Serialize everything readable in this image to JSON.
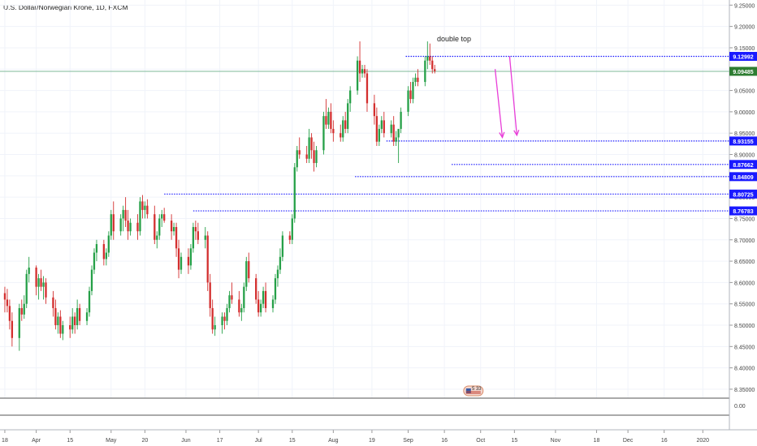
{
  "header": {
    "symbol_title": "U.S. Dollar/Norwegian Krone, 1D, FXCM"
  },
  "chart_data": {
    "type": "candlestick",
    "title": "U.S. Dollar/Norwegian Krone, 1D, FXCM",
    "y_axis": {
      "ticks": [
        8.35,
        8.4,
        8.45,
        8.5,
        8.55,
        8.6,
        8.65,
        8.7,
        8.75,
        8.8,
        8.85,
        8.9,
        8.95,
        9.0,
        9.05,
        9.1,
        9.15,
        9.2,
        9.25
      ],
      "tick_labels": [
        "8.35000",
        "8.40000",
        "8.45000",
        "8.50000",
        "8.55000",
        "8.60000",
        "8.65000",
        "8.70000",
        "8.75000",
        "8.80000",
        "8.85000",
        "8.90000",
        "8.95000",
        "9.00000",
        "9.05000",
        "9.10000",
        "9.15000",
        "9.20000",
        "9.25000"
      ],
      "range": [
        8.329,
        9.262
      ]
    },
    "x_axis": {
      "labels": [
        {
          "day": 0,
          "text": "18"
        },
        {
          "day": 13,
          "text": "Apr"
        },
        {
          "day": 27,
          "text": "15"
        },
        {
          "day": 44,
          "text": "May"
        },
        {
          "day": 58,
          "text": "20"
        },
        {
          "day": 75,
          "text": "Jun"
        },
        {
          "day": 89,
          "text": "17"
        },
        {
          "day": 105,
          "text": "Jul"
        },
        {
          "day": 119,
          "text": "15"
        },
        {
          "day": 136,
          "text": "Aug"
        },
        {
          "day": 152,
          "text": "19"
        },
        {
          "day": 167,
          "text": "Sep"
        },
        {
          "day": 182,
          "text": "16"
        },
        {
          "day": 197,
          "text": "Oct"
        },
        {
          "day": 211,
          "text": "15"
        },
        {
          "day": 228,
          "text": "Nov"
        },
        {
          "day": 245,
          "text": "18"
        },
        {
          "day": 258,
          "text": "Dec"
        },
        {
          "day": 273,
          "text": "16"
        },
        {
          "day": 289,
          "text": "2020"
        }
      ],
      "day_range": [
        -2,
        300
      ]
    },
    "current_price": {
      "value": 9.09485,
      "label": "9.09485",
      "color": "#2e7d32"
    },
    "levels": [
      {
        "value": 9.12992,
        "label": "9.12992",
        "from_day": 166
      },
      {
        "value": 8.93155,
        "label": "8.93155",
        "from_day": 158
      },
      {
        "value": 8.87662,
        "label": "8.87662",
        "from_day": 185
      },
      {
        "value": 8.84809,
        "label": "8.84809",
        "from_day": 145
      },
      {
        "value": 8.80725,
        "label": "8.80725",
        "from_day": 66
      },
      {
        "value": 8.76783,
        "label": "8.76783",
        "from_day": 78
      }
    ],
    "level_color": "#1a1aff",
    "annotations": [
      {
        "text": "double top",
        "day": 186,
        "value": 9.165
      }
    ],
    "arrows": [
      {
        "from_day": 203,
        "from_value": 9.1,
        "to_day": 206,
        "to_value": 8.94
      },
      {
        "from_day": 209,
        "from_value": 9.13,
        "to_day": 212,
        "to_value": 8.945
      }
    ],
    "arrow_color": "#e83ed8",
    "up_color": "#26a048",
    "down_color": "#d32f2f",
    "candles": [
      {
        "d": 0,
        "o": 8.575,
        "h": 8.59,
        "l": 8.53,
        "c": 8.56
      },
      {
        "d": 1,
        "o": 8.56,
        "h": 8.585,
        "l": 8.53,
        "c": 8.545
      },
      {
        "d": 2,
        "o": 8.545,
        "h": 8.56,
        "l": 8.49,
        "c": 8.51
      },
      {
        "d": 3,
        "o": 8.51,
        "h": 8.53,
        "l": 8.45,
        "c": 8.47
      },
      {
        "d": 6,
        "o": 8.47,
        "h": 8.55,
        "l": 8.44,
        "c": 8.54
      },
      {
        "d": 7,
        "o": 8.54,
        "h": 8.56,
        "l": 8.51,
        "c": 8.525
      },
      {
        "d": 8,
        "o": 8.525,
        "h": 8.57,
        "l": 8.515,
        "c": 8.55
      },
      {
        "d": 9,
        "o": 8.55,
        "h": 8.63,
        "l": 8.54,
        "c": 8.62
      },
      {
        "d": 10,
        "o": 8.62,
        "h": 8.66,
        "l": 8.6,
        "c": 8.635
      },
      {
        "d": 13,
        "o": 8.635,
        "h": 8.64,
        "l": 8.57,
        "c": 8.59
      },
      {
        "d": 14,
        "o": 8.59,
        "h": 8.62,
        "l": 8.56,
        "c": 8.61
      },
      {
        "d": 15,
        "o": 8.61,
        "h": 8.63,
        "l": 8.58,
        "c": 8.59
      },
      {
        "d": 16,
        "o": 8.59,
        "h": 8.615,
        "l": 8.56,
        "c": 8.6
      },
      {
        "d": 17,
        "o": 8.6,
        "h": 8.61,
        "l": 8.55,
        "c": 8.565
      },
      {
        "d": 20,
        "o": 8.565,
        "h": 8.58,
        "l": 8.52,
        "c": 8.54
      },
      {
        "d": 21,
        "o": 8.54,
        "h": 8.56,
        "l": 8.49,
        "c": 8.5
      },
      {
        "d": 22,
        "o": 8.5,
        "h": 8.53,
        "l": 8.48,
        "c": 8.52
      },
      {
        "d": 23,
        "o": 8.52,
        "h": 8.535,
        "l": 8.47,
        "c": 8.48
      },
      {
        "d": 24,
        "o": 8.48,
        "h": 8.51,
        "l": 8.465,
        "c": 8.5
      },
      {
        "d": 27,
        "o": 8.5,
        "h": 8.52,
        "l": 8.47,
        "c": 8.49
      },
      {
        "d": 28,
        "o": 8.49,
        "h": 8.54,
        "l": 8.48,
        "c": 8.52
      },
      {
        "d": 29,
        "o": 8.52,
        "h": 8.53,
        "l": 8.48,
        "c": 8.5
      },
      {
        "d": 30,
        "o": 8.5,
        "h": 8.56,
        "l": 8.49,
        "c": 8.54
      },
      {
        "d": 31,
        "o": 8.54,
        "h": 8.55,
        "l": 8.5,
        "c": 8.51
      },
      {
        "d": 34,
        "o": 8.51,
        "h": 8.54,
        "l": 8.5,
        "c": 8.53
      },
      {
        "d": 35,
        "o": 8.53,
        "h": 8.59,
        "l": 8.52,
        "c": 8.58
      },
      {
        "d": 36,
        "o": 8.58,
        "h": 8.64,
        "l": 8.57,
        "c": 8.63
      },
      {
        "d": 37,
        "o": 8.63,
        "h": 8.68,
        "l": 8.62,
        "c": 8.67
      },
      {
        "d": 38,
        "o": 8.67,
        "h": 8.7,
        "l": 8.65,
        "c": 8.69
      },
      {
        "d": 41,
        "o": 8.69,
        "h": 8.7,
        "l": 8.64,
        "c": 8.655
      },
      {
        "d": 42,
        "o": 8.655,
        "h": 8.68,
        "l": 8.64,
        "c": 8.67
      },
      {
        "d": 43,
        "o": 8.67,
        "h": 8.72,
        "l": 8.66,
        "c": 8.71
      },
      {
        "d": 44,
        "o": 8.71,
        "h": 8.77,
        "l": 8.7,
        "c": 8.76
      },
      {
        "d": 45,
        "o": 8.76,
        "h": 8.79,
        "l": 8.7,
        "c": 8.72
      },
      {
        "d": 48,
        "o": 8.72,
        "h": 8.76,
        "l": 8.71,
        "c": 8.75
      },
      {
        "d": 49,
        "o": 8.75,
        "h": 8.78,
        "l": 8.72,
        "c": 8.77
      },
      {
        "d": 50,
        "o": 8.77,
        "h": 8.8,
        "l": 8.73,
        "c": 8.745
      },
      {
        "d": 51,
        "o": 8.745,
        "h": 8.77,
        "l": 8.7,
        "c": 8.72
      },
      {
        "d": 52,
        "o": 8.72,
        "h": 8.75,
        "l": 8.71,
        "c": 8.74
      },
      {
        "d": 55,
        "o": 8.74,
        "h": 8.76,
        "l": 8.7,
        "c": 8.72
      },
      {
        "d": 56,
        "o": 8.72,
        "h": 8.8,
        "l": 8.71,
        "c": 8.79
      },
      {
        "d": 57,
        "o": 8.79,
        "h": 8.805,
        "l": 8.75,
        "c": 8.77
      },
      {
        "d": 58,
        "o": 8.77,
        "h": 8.79,
        "l": 8.75,
        "c": 8.78
      },
      {
        "d": 59,
        "o": 8.78,
        "h": 8.795,
        "l": 8.75,
        "c": 8.76
      },
      {
        "d": 62,
        "o": 8.76,
        "h": 8.78,
        "l": 8.69,
        "c": 8.7
      },
      {
        "d": 63,
        "o": 8.7,
        "h": 8.72,
        "l": 8.68,
        "c": 8.71
      },
      {
        "d": 64,
        "o": 8.71,
        "h": 8.76,
        "l": 8.7,
        "c": 8.75
      },
      {
        "d": 65,
        "o": 8.75,
        "h": 8.77,
        "l": 8.73,
        "c": 8.76
      },
      {
        "d": 66,
        "o": 8.76,
        "h": 8.775,
        "l": 8.74,
        "c": 8.745
      },
      {
        "d": 69,
        "o": 8.745,
        "h": 8.76,
        "l": 8.7,
        "c": 8.72
      },
      {
        "d": 70,
        "o": 8.72,
        "h": 8.74,
        "l": 8.71,
        "c": 8.73
      },
      {
        "d": 71,
        "o": 8.73,
        "h": 8.74,
        "l": 8.66,
        "c": 8.68
      },
      {
        "d": 72,
        "o": 8.68,
        "h": 8.7,
        "l": 8.61,
        "c": 8.63
      },
      {
        "d": 73,
        "o": 8.63,
        "h": 8.67,
        "l": 8.62,
        "c": 8.66
      },
      {
        "d": 76,
        "o": 8.66,
        "h": 8.68,
        "l": 8.62,
        "c": 8.64
      },
      {
        "d": 77,
        "o": 8.64,
        "h": 8.69,
        "l": 8.63,
        "c": 8.68
      },
      {
        "d": 78,
        "o": 8.68,
        "h": 8.74,
        "l": 8.67,
        "c": 8.73
      },
      {
        "d": 79,
        "o": 8.73,
        "h": 8.745,
        "l": 8.7,
        "c": 8.72
      },
      {
        "d": 80,
        "o": 8.72,
        "h": 8.74,
        "l": 8.69,
        "c": 8.7
      },
      {
        "d": 83,
        "o": 8.7,
        "h": 8.73,
        "l": 8.68,
        "c": 8.71
      },
      {
        "d": 84,
        "o": 8.71,
        "h": 8.72,
        "l": 8.58,
        "c": 8.6
      },
      {
        "d": 85,
        "o": 8.6,
        "h": 8.62,
        "l": 8.52,
        "c": 8.54
      },
      {
        "d": 86,
        "o": 8.54,
        "h": 8.56,
        "l": 8.48,
        "c": 8.49
      },
      {
        "d": 87,
        "o": 8.49,
        "h": 8.52,
        "l": 8.475,
        "c": 8.5
      },
      {
        "d": 90,
        "o": 8.5,
        "h": 8.53,
        "l": 8.48,
        "c": 8.52
      },
      {
        "d": 91,
        "o": 8.52,
        "h": 8.53,
        "l": 8.49,
        "c": 8.51
      },
      {
        "d": 92,
        "o": 8.51,
        "h": 8.55,
        "l": 8.5,
        "c": 8.54
      },
      {
        "d": 93,
        "o": 8.54,
        "h": 8.58,
        "l": 8.53,
        "c": 8.57
      },
      {
        "d": 94,
        "o": 8.57,
        "h": 8.6,
        "l": 8.55,
        "c": 8.56
      },
      {
        "d": 97,
        "o": 8.56,
        "h": 8.58,
        "l": 8.52,
        "c": 8.53
      },
      {
        "d": 98,
        "o": 8.53,
        "h": 8.55,
        "l": 8.51,
        "c": 8.54
      },
      {
        "d": 99,
        "o": 8.54,
        "h": 8.6,
        "l": 8.53,
        "c": 8.59
      },
      {
        "d": 100,
        "o": 8.59,
        "h": 8.66,
        "l": 8.58,
        "c": 8.65
      },
      {
        "d": 101,
        "o": 8.65,
        "h": 8.67,
        "l": 8.6,
        "c": 8.61
      },
      {
        "d": 104,
        "o": 8.61,
        "h": 8.62,
        "l": 8.55,
        "c": 8.56
      },
      {
        "d": 105,
        "o": 8.56,
        "h": 8.58,
        "l": 8.52,
        "c": 8.53
      },
      {
        "d": 106,
        "o": 8.53,
        "h": 8.56,
        "l": 8.52,
        "c": 8.55
      },
      {
        "d": 107,
        "o": 8.55,
        "h": 8.59,
        "l": 8.54,
        "c": 8.58
      },
      {
        "d": 108,
        "o": 8.58,
        "h": 8.6,
        "l": 8.53,
        "c": 8.54
      },
      {
        "d": 111,
        "o": 8.54,
        "h": 8.57,
        "l": 8.53,
        "c": 8.56
      },
      {
        "d": 112,
        "o": 8.56,
        "h": 8.62,
        "l": 8.55,
        "c": 8.61
      },
      {
        "d": 113,
        "o": 8.61,
        "h": 8.64,
        "l": 8.59,
        "c": 8.63
      },
      {
        "d": 114,
        "o": 8.63,
        "h": 8.68,
        "l": 8.62,
        "c": 8.66
      },
      {
        "d": 115,
        "o": 8.66,
        "h": 8.72,
        "l": 8.65,
        "c": 8.71
      },
      {
        "d": 118,
        "o": 8.71,
        "h": 8.72,
        "l": 8.69,
        "c": 8.7
      },
      {
        "d": 119,
        "o": 8.7,
        "h": 8.76,
        "l": 8.69,
        "c": 8.75
      },
      {
        "d": 120,
        "o": 8.75,
        "h": 8.88,
        "l": 8.74,
        "c": 8.87
      },
      {
        "d": 121,
        "o": 8.87,
        "h": 8.92,
        "l": 8.86,
        "c": 8.91
      },
      {
        "d": 122,
        "o": 8.91,
        "h": 8.94,
        "l": 8.89,
        "c": 8.9
      },
      {
        "d": 125,
        "o": 8.9,
        "h": 8.92,
        "l": 8.88,
        "c": 8.89
      },
      {
        "d": 126,
        "o": 8.89,
        "h": 8.96,
        "l": 8.88,
        "c": 8.94
      },
      {
        "d": 127,
        "o": 8.94,
        "h": 8.95,
        "l": 8.89,
        "c": 8.91
      },
      {
        "d": 128,
        "o": 8.91,
        "h": 8.93,
        "l": 8.86,
        "c": 8.88
      },
      {
        "d": 129,
        "o": 8.88,
        "h": 8.92,
        "l": 8.87,
        "c": 8.91
      },
      {
        "d": 132,
        "o": 8.91,
        "h": 9.0,
        "l": 8.9,
        "c": 8.99
      },
      {
        "d": 133,
        "o": 8.99,
        "h": 9.03,
        "l": 8.96,
        "c": 8.97
      },
      {
        "d": 134,
        "o": 8.97,
        "h": 9.01,
        "l": 8.96,
        "c": 9.0
      },
      {
        "d": 135,
        "o": 9.0,
        "h": 9.02,
        "l": 8.95,
        "c": 8.96
      },
      {
        "d": 136,
        "o": 8.96,
        "h": 8.98,
        "l": 8.93,
        "c": 8.95
      },
      {
        "d": 139,
        "o": 8.95,
        "h": 8.97,
        "l": 8.93,
        "c": 8.94
      },
      {
        "d": 140,
        "o": 8.94,
        "h": 8.99,
        "l": 8.93,
        "c": 8.98
      },
      {
        "d": 141,
        "o": 8.98,
        "h": 9.0,
        "l": 8.95,
        "c": 8.96
      },
      {
        "d": 142,
        "o": 8.96,
        "h": 9.03,
        "l": 8.95,
        "c": 9.02
      },
      {
        "d": 143,
        "o": 9.02,
        "h": 9.06,
        "l": 9.0,
        "c": 9.05
      },
      {
        "d": 146,
        "o": 9.05,
        "h": 9.13,
        "l": 9.04,
        "c": 9.12
      },
      {
        "d": 147,
        "o": 9.12,
        "h": 9.165,
        "l": 9.07,
        "c": 9.09
      },
      {
        "d": 148,
        "o": 9.09,
        "h": 9.11,
        "l": 9.08,
        "c": 9.1
      },
      {
        "d": 149,
        "o": 9.1,
        "h": 9.11,
        "l": 9.08,
        "c": 9.09
      },
      {
        "d": 150,
        "o": 9.09,
        "h": 9.1,
        "l": 9.0,
        "c": 9.02
      },
      {
        "d": 153,
        "o": 9.02,
        "h": 9.04,
        "l": 8.97,
        "c": 8.99
      },
      {
        "d": 154,
        "o": 8.99,
        "h": 9.01,
        "l": 8.92,
        "c": 8.93
      },
      {
        "d": 155,
        "o": 8.93,
        "h": 8.97,
        "l": 8.92,
        "c": 8.96
      },
      {
        "d": 156,
        "o": 8.96,
        "h": 8.99,
        "l": 8.95,
        "c": 8.98
      },
      {
        "d": 157,
        "o": 8.98,
        "h": 9.0,
        "l": 8.94,
        "c": 8.95
      },
      {
        "d": 160,
        "o": 8.95,
        "h": 8.98,
        "l": 8.94,
        "c": 8.97
      },
      {
        "d": 161,
        "o": 8.97,
        "h": 8.99,
        "l": 8.92,
        "c": 8.93
      },
      {
        "d": 162,
        "o": 8.93,
        "h": 8.955,
        "l": 8.92,
        "c": 8.94
      },
      {
        "d": 163,
        "o": 8.94,
        "h": 8.96,
        "l": 8.88,
        "c": 8.96
      },
      {
        "d": 164,
        "o": 8.96,
        "h": 9.01,
        "l": 8.95,
        "c": 9.0
      },
      {
        "d": 167,
        "o": 9.0,
        "h": 9.06,
        "l": 8.99,
        "c": 9.05
      },
      {
        "d": 168,
        "o": 9.05,
        "h": 9.07,
        "l": 9.02,
        "c": 9.03
      },
      {
        "d": 169,
        "o": 9.03,
        "h": 9.08,
        "l": 9.02,
        "c": 9.07
      },
      {
        "d": 170,
        "o": 9.07,
        "h": 9.09,
        "l": 9.06,
        "c": 9.08
      },
      {
        "d": 171,
        "o": 9.08,
        "h": 9.1,
        "l": 9.06,
        "c": 9.07
      },
      {
        "d": 174,
        "o": 9.07,
        "h": 9.13,
        "l": 9.06,
        "c": 9.12
      },
      {
        "d": 175,
        "o": 9.12,
        "h": 9.165,
        "l": 9.1,
        "c": 9.13
      },
      {
        "d": 176,
        "o": 9.13,
        "h": 9.16,
        "l": 9.11,
        "c": 9.12
      },
      {
        "d": 177,
        "o": 9.12,
        "h": 9.13,
        "l": 9.09,
        "c": 9.1
      },
      {
        "d": 178,
        "o": 9.1,
        "h": 9.11,
        "l": 9.09,
        "c": 9.095
      }
    ],
    "watermark": {
      "text": "5 33"
    }
  }
}
